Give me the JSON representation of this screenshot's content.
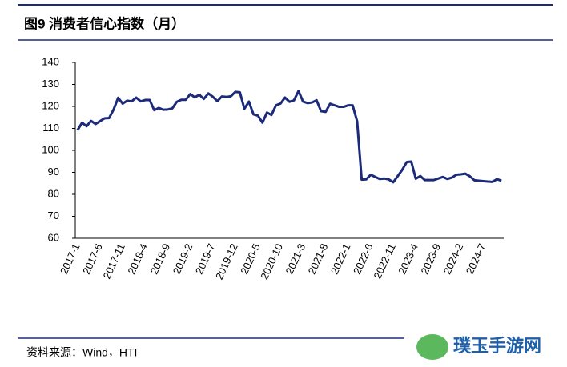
{
  "chart_data": {
    "type": "line",
    "title": "图9  消费者信心指数（月）",
    "source": "资料来源：Wind，HTI",
    "watermark": "璞玉手游网",
    "categories": [
      "2017-1",
      null,
      null,
      null,
      null,
      "2017-6",
      null,
      null,
      null,
      null,
      "2017-11",
      null,
      null,
      null,
      null,
      "2018-4",
      null,
      null,
      null,
      null,
      "2018-9",
      null,
      null,
      null,
      null,
      "2019-2",
      null,
      null,
      null,
      null,
      "2019-7",
      null,
      null,
      null,
      null,
      "2019-12",
      null,
      null,
      null,
      null,
      "2020-5",
      null,
      null,
      null,
      null,
      "2020-10",
      null,
      null,
      null,
      null,
      "2021-3",
      null,
      null,
      null,
      null,
      "2021-8",
      null,
      null,
      null,
      null,
      "2022-1",
      null,
      null,
      null,
      null,
      "2022-6",
      null,
      null,
      null,
      null,
      "2022-11",
      null,
      null,
      null,
      null,
      "2023-4",
      null,
      null,
      null,
      null,
      "2023-9",
      null,
      null,
      null,
      null,
      "2024-2",
      null,
      null,
      null,
      null,
      "2024-7",
      null,
      null,
      null,
      null
    ],
    "series": [
      {
        "name": "消费者信心指数",
        "color": "#1c2a7a",
        "values": [
          109.2,
          112.6,
          111.0,
          113.4,
          112.0,
          113.3,
          114.6,
          114.7,
          118.6,
          123.9,
          121.3,
          122.6,
          122.3,
          124.0,
          122.3,
          122.9,
          122.9,
          118.3,
          119.3,
          118.5,
          118.6,
          119.1,
          122.1,
          123.0,
          123.0,
          125.6,
          124.1,
          125.3,
          123.4,
          125.9,
          124.4,
          122.4,
          124.5,
          124.3,
          124.6,
          126.6,
          126.4,
          118.9,
          122.2,
          116.4,
          115.8,
          112.6,
          117.2,
          116.1,
          120.5,
          121.3,
          124.0,
          122.1,
          122.8,
          127.0,
          122.2,
          121.5,
          121.8,
          122.8,
          117.8,
          117.5,
          121.2,
          120.5,
          119.8,
          119.8,
          120.5,
          120.5,
          113.2,
          86.7,
          86.8,
          88.9,
          87.9,
          87.0,
          87.2,
          86.8,
          85.5,
          88.3,
          91.2,
          94.7,
          94.9,
          87.1,
          88.3,
          86.5,
          86.5,
          86.5,
          87.2,
          87.9,
          87.0,
          87.6,
          88.9,
          89.1,
          89.4,
          88.2,
          86.4,
          86.2,
          86.0,
          85.8,
          85.7,
          86.9,
          86.2
        ]
      }
    ],
    "ylim": [
      60,
      140
    ],
    "yticks": [
      60,
      70,
      80,
      90,
      100,
      110,
      120,
      130,
      140
    ]
  }
}
